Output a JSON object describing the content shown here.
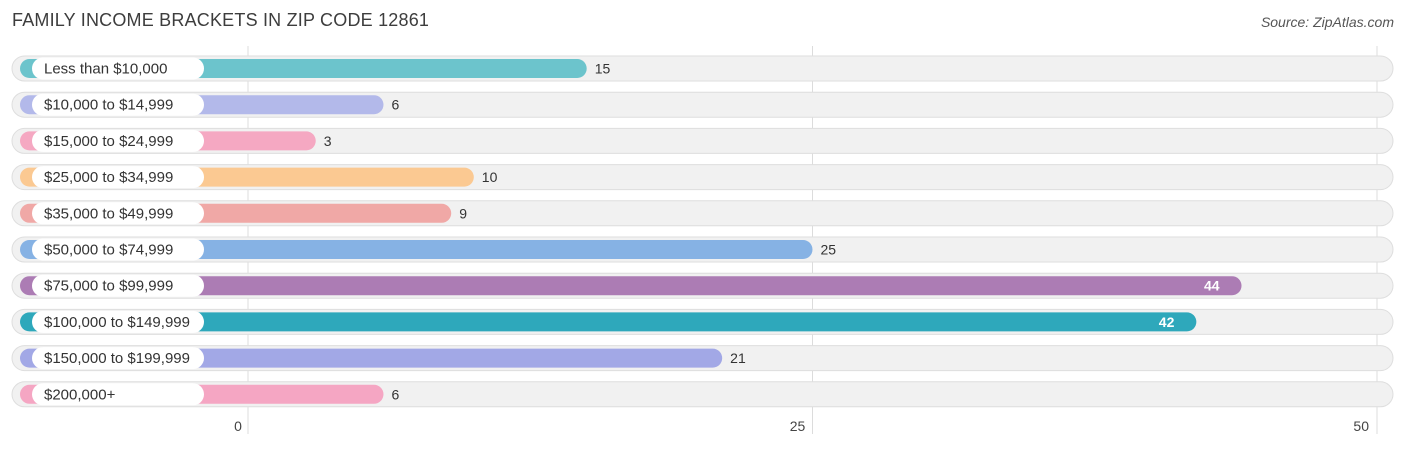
{
  "chart_data": {
    "type": "bar",
    "orientation": "horizontal",
    "title": "FAMILY INCOME BRACKETS IN ZIP CODE 12861",
    "source": "Source: ZipAtlas.com",
    "categories": [
      "Less than $10,000",
      "$10,000 to $14,999",
      "$15,000 to $24,999",
      "$25,000 to $34,999",
      "$35,000 to $49,999",
      "$50,000 to $74,999",
      "$75,000 to $99,999",
      "$100,000 to $149,999",
      "$150,000 to $199,999",
      "$200,000+"
    ],
    "values": [
      15,
      6,
      3,
      10,
      9,
      25,
      44,
      42,
      21,
      6
    ],
    "colors": [
      "#6cc4cc",
      "#b3b9ea",
      "#f5a8c2",
      "#fbc992",
      "#f0a8a6",
      "#86b2e4",
      "#ac7cb4",
      "#2ea8bb",
      "#a2a8e6",
      "#f5a6c3"
    ],
    "xlim": [
      0,
      50
    ],
    "xticks": [
      0,
      25,
      50
    ],
    "grid": true,
    "xlabel": "",
    "ylabel": ""
  }
}
